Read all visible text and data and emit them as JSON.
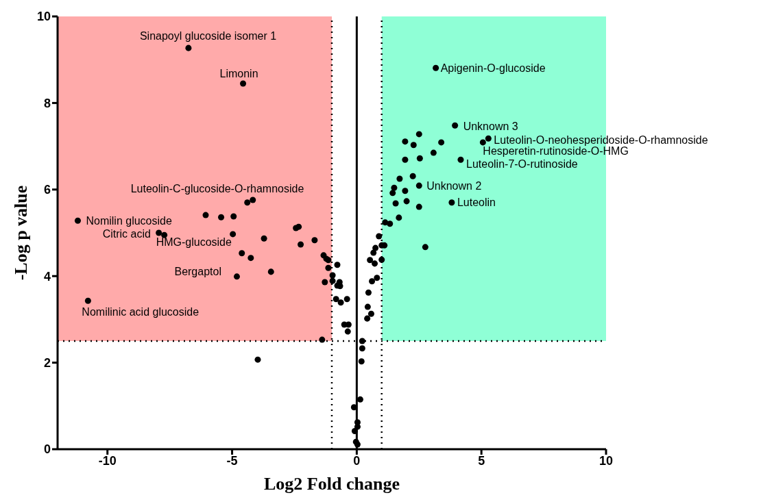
{
  "chart_data": {
    "type": "scatter",
    "xlabel": "Log2 Fold change",
    "ylabel": "-Log p value",
    "xlim": [
      -12,
      10
    ],
    "ylim": [
      0,
      10
    ],
    "xticks": [
      -10,
      -5,
      0,
      5,
      10
    ],
    "yticks": [
      0,
      2,
      4,
      6,
      8,
      10
    ],
    "grid": false,
    "legend": false,
    "marker": "circle",
    "series": [
      {
        "color": "#000000",
        "x": [
          -6.75,
          -4.56,
          -11.19,
          -10.78,
          -7.94,
          -7.72,
          -6.06,
          -5.44,
          -4.94,
          -4.97,
          -4.39,
          -4.17,
          -3.72,
          -4.61,
          -4.25,
          -3.44,
          -4.81,
          -2.44,
          -2.33,
          -2.25,
          -1.69,
          -1.39,
          -3.97,
          -1.33,
          -1.22,
          -1.14,
          -1.14,
          -0.78,
          -0.97,
          -1.28,
          -0.97,
          -0.69,
          -0.78,
          -0.67,
          -0.83,
          -0.64,
          -0.39,
          -0.5,
          -0.33,
          -0.36,
          0.22,
          0.22,
          0.19,
          0.14,
          -0.11,
          0.03,
          0.03,
          -0.08,
          -0.03,
          0.03,
          0.89,
          0.75,
          1.0,
          1.11,
          0.67,
          0.53,
          0.72,
          1.0,
          0.61,
          0.81,
          0.47,
          0.44,
          0.58,
          0.42,
          2.75,
          3.94,
          5.28,
          5.06,
          4.17,
          2.5,
          1.94,
          2.28,
          3.39,
          3.08,
          1.94,
          2.53,
          2.5,
          2.25,
          1.72,
          1.5,
          1.44,
          1.94,
          1.56,
          2.0,
          2.5,
          3.81,
          1.69,
          1.14,
          1.33,
          3.17
        ],
        "values": [
          9.27,
          8.45,
          5.28,
          3.43,
          5.0,
          4.95,
          5.41,
          5.36,
          5.38,
          4.97,
          5.7,
          5.76,
          4.87,
          4.53,
          4.42,
          4.1,
          3.99,
          5.11,
          5.14,
          4.73,
          4.83,
          2.53,
          2.07,
          4.48,
          4.4,
          4.37,
          4.19,
          4.26,
          4.02,
          3.86,
          3.89,
          3.86,
          3.78,
          3.77,
          3.47,
          3.39,
          3.47,
          2.88,
          2.88,
          2.72,
          2.5,
          2.33,
          2.03,
          1.15,
          0.97,
          0.62,
          0.52,
          0.42,
          0.17,
          0.11,
          4.92,
          4.65,
          4.71,
          4.71,
          4.54,
          4.37,
          4.29,
          4.38,
          3.88,
          3.96,
          3.62,
          3.29,
          3.13,
          3.02,
          4.67,
          7.48,
          7.18,
          7.09,
          6.69,
          7.28,
          7.11,
          7.03,
          7.09,
          6.85,
          6.69,
          6.72,
          6.09,
          6.31,
          6.25,
          6.04,
          5.92,
          5.97,
          5.68,
          5.73,
          5.6,
          5.7,
          5.35,
          5.24,
          5.21,
          8.81
        ]
      }
    ],
    "ref_lines": [
      {
        "axis": "x",
        "value": -1,
        "line_style": "dotted"
      },
      {
        "axis": "x",
        "value": 1,
        "line_style": "dotted"
      },
      {
        "axis": "y",
        "value": 2.5,
        "line_style": "dotted"
      },
      {
        "axis": "x",
        "value": 0,
        "line_style": "solid"
      }
    ],
    "bands": [
      {
        "axis": "x",
        "from": -12,
        "to": -1,
        "color": "#ffaaaa"
      },
      {
        "axis": "x",
        "from": 1,
        "to": 10,
        "color": "#8fffd6"
      }
    ],
    "annotations": [
      {
        "text": "Sinapoyl glucoside isomer 1",
        "x": -6.75,
        "y": 9.27
      },
      {
        "text": "Limonin",
        "x": -4.56,
        "y": 8.45
      },
      {
        "text": "Apigenin-O-glucoside",
        "x": 3.17,
        "y": 8.81
      },
      {
        "text": "Unknown 3",
        "x": 3.94,
        "y": 7.48
      },
      {
        "text": "Luteolin-O-neohesperidoside-O-rhamnoside",
        "x": 5.28,
        "y": 7.18
      },
      {
        "text": "Hesperetin-rutinoside-O-HMG",
        "x": 5.06,
        "y": 7.09
      },
      {
        "text": "Luteolin-7-O-rutinoside",
        "x": 4.17,
        "y": 6.69
      },
      {
        "text": "Unknown 2",
        "x": 2.5,
        "y": 6.09
      },
      {
        "text": "Luteolin",
        "x": 3.81,
        "y": 5.7
      },
      {
        "text": "Luteolin-C-glucoside-O-rhamnoside",
        "x": -4.17,
        "y": 5.76
      },
      {
        "text": "Nomilin glucoside",
        "x": -11.19,
        "y": 5.28
      },
      {
        "text": "Citric acid",
        "x": -7.94,
        "y": 5.0
      },
      {
        "text": "HMG-glucoside",
        "x": -4.97,
        "y": 4.97
      },
      {
        "text": "Bergaptol",
        "x": -4.81,
        "y": 3.99
      },
      {
        "text": "Nomilinic acid glucoside",
        "x": -10.78,
        "y": 3.43
      }
    ]
  }
}
